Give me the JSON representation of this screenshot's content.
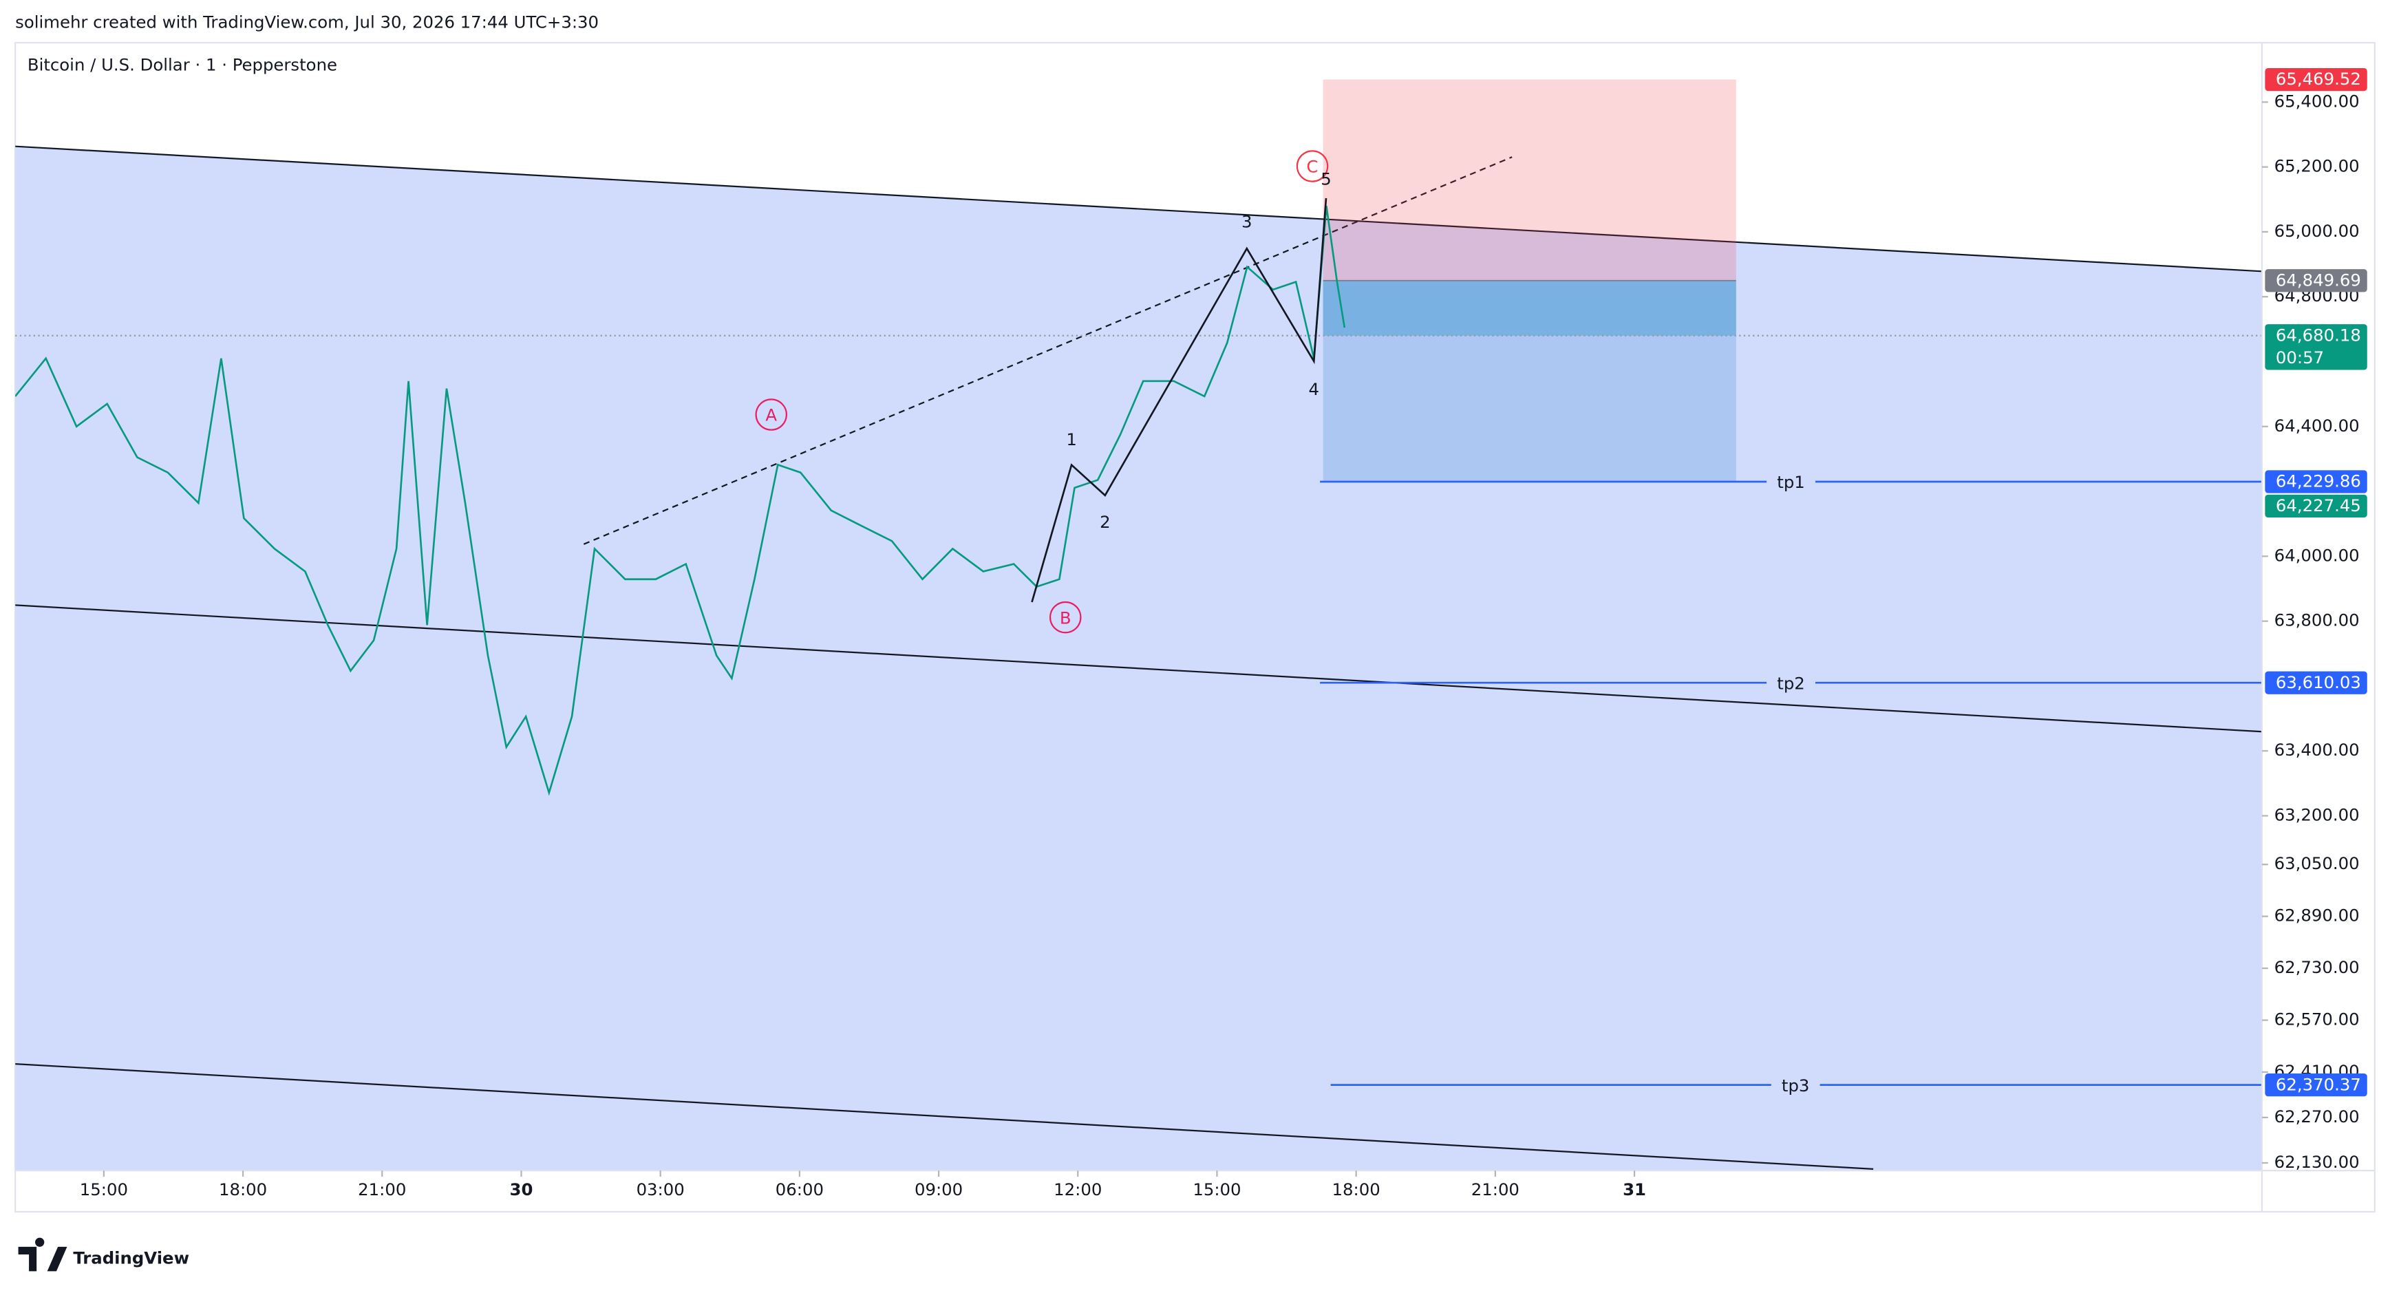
{
  "header": "solimehr created with TradingView.com, Jul 30, 2026 17:44 UTC+3:30",
  "brand": "TradingView",
  "chart_data": {
    "type": "line",
    "title": "Bitcoin / U.S. Dollar · 1 · Pepperstone",
    "color": "#089981",
    "x": [
      13.09,
      13.75,
      14.41,
      15.07,
      15.72,
      16.38,
      17.04,
      17.53,
      18.02,
      18.68,
      19.34,
      19.83,
      20.32,
      20.82,
      21.31,
      21.57,
      21.97,
      22.39,
      22.79,
      23.28,
      23.68,
      24.1,
      24.6,
      25.09,
      25.58,
      26.24,
      26.9,
      27.55,
      28.21,
      28.54,
      29.03,
      29.53,
      30.02,
      30.68,
      31.33,
      31.99,
      32.65,
      33.3,
      33.96,
      34.62,
      35.11,
      35.6,
      35.93,
      36.43,
      36.92,
      37.41,
      38.07,
      38.73,
      39.22,
      39.65,
      40.21,
      40.7,
      41.09,
      41.36,
      41.59,
      41.75
    ],
    "values": [
      64493,
      64610,
      64400,
      64470,
      64305,
      64258,
      64164,
      64610,
      64117,
      64023,
      63953,
      63788,
      63647,
      63741,
      64023,
      64540,
      63788,
      64517,
      64164,
      63694,
      63412,
      63506,
      63271,
      63506,
      64023,
      63929,
      63929,
      63976,
      63694,
      63624,
      63929,
      64282,
      64258,
      64141,
      64094,
      64047,
      63929,
      64023,
      63953,
      63976,
      63906,
      63929,
      64211,
      64235,
      64376,
      64540,
      64540,
      64493,
      64658,
      64892,
      64822,
      64846,
      64610,
      65080,
      64846,
      64705
    ],
    "xlim": [
      13.09,
      61.53
    ],
    "xticks": [
      {
        "value": 15,
        "label": "15:00"
      },
      {
        "value": 18,
        "label": "18:00"
      },
      {
        "value": 21,
        "label": "21:00"
      },
      {
        "value": 24,
        "label": "30"
      },
      {
        "value": 27,
        "label": "03:00"
      },
      {
        "value": 30,
        "label": "06:00"
      },
      {
        "value": 33,
        "label": "09:00"
      },
      {
        "value": 36,
        "label": "12:00"
      },
      {
        "value": 39,
        "label": "15:00"
      },
      {
        "value": 42,
        "label": "18:00"
      },
      {
        "value": 45,
        "label": "21:00"
      },
      {
        "value": 48,
        "label": "31"
      }
    ],
    "ylim": [
      62111,
      65583
    ],
    "yticks": [
      {
        "value": 65400,
        "label": "65,400.00"
      },
      {
        "value": 65200,
        "label": "65,200.00"
      },
      {
        "value": 65000,
        "label": "65,000.00"
      },
      {
        "value": 64800,
        "label": "64,800.00"
      },
      {
        "value": 64400,
        "label": "64,400.00"
      },
      {
        "value": 64000,
        "label": "64,000.00"
      },
      {
        "value": 63800,
        "label": "63,800.00"
      },
      {
        "value": 63400,
        "label": "63,400.00"
      },
      {
        "value": 63200,
        "label": "63,200.00"
      },
      {
        "value": 63050,
        "label": "63,050.00"
      },
      {
        "value": 62890,
        "label": "62,890.00"
      },
      {
        "value": 62730,
        "label": "62,730.00"
      },
      {
        "value": 62570,
        "label": "62,570.00"
      },
      {
        "value": 62410,
        "label": "62,410.00"
      },
      {
        "value": 62270,
        "label": "62,270.00"
      },
      {
        "value": 62130,
        "label": "62,130.00"
      }
    ],
    "price_labels": [
      {
        "value": 65469.52,
        "label": "65,469.52",
        "color": "#f23645"
      },
      {
        "value": 64849.69,
        "label": "64,849.69",
        "color": "#787b86"
      },
      {
        "value": 64680.18,
        "label": "64,680.18",
        "color": "#089981",
        "countdown": "00:57"
      },
      {
        "value": 64229.86,
        "label": "64,229.86",
        "color": "#2962ff"
      },
      {
        "value": 64227.45,
        "label": "64,227.45",
        "color": "#089981"
      },
      {
        "value": 63610.03,
        "label": "63,610.03",
        "color": "#2962ff"
      },
      {
        "value": 62370.37,
        "label": "62,370.37",
        "color": "#2962ff"
      }
    ],
    "waves": [
      "A",
      "B",
      "C",
      "1",
      "2",
      "3",
      "4",
      "5"
    ],
    "targets": [
      "tp1",
      "tp2",
      "tp3"
    ]
  }
}
